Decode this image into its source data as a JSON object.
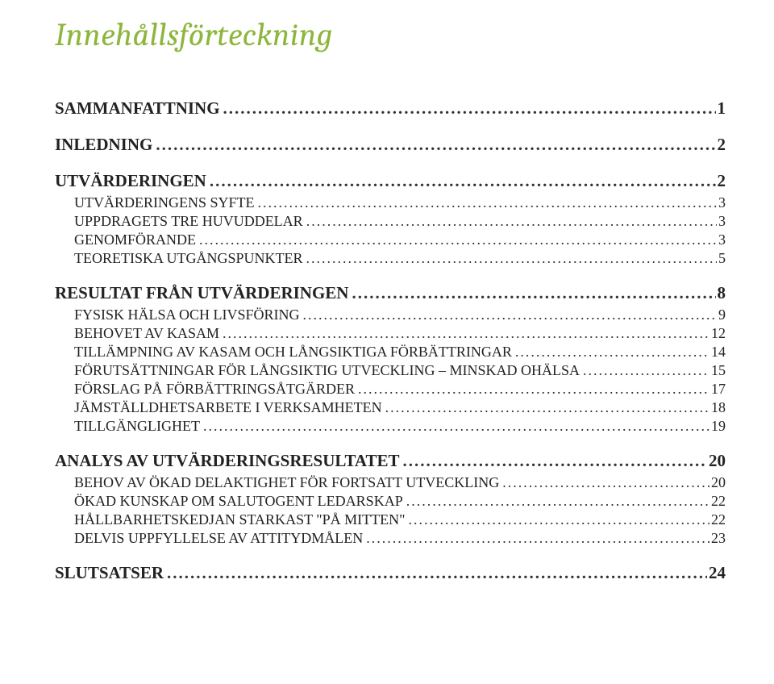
{
  "title": "Innehållsförteckning",
  "colors": {
    "title_color": "#8db63c",
    "text_color": "#222222",
    "background": "#ffffff"
  },
  "typography": {
    "title_font": "Cambria, serif, italic",
    "title_fontsize_pt": 30,
    "body_font": "Times New Roman",
    "lvl1_fontsize_pt": 16,
    "lvl2_fontsize_pt": 13
  },
  "toc": [
    {
      "level": 1,
      "label": "SAMMANFATTNING",
      "page": "1"
    },
    {
      "level": 1,
      "label": "INLEDNING",
      "page": "2"
    },
    {
      "level": 1,
      "label": "UTVÄRDERINGEN",
      "page": "2"
    },
    {
      "level": 2,
      "label": "UTVÄRDERINGENS SYFTE",
      "page": "3"
    },
    {
      "level": 2,
      "label": "UPPDRAGETS TRE HUVUDDELAR",
      "page": "3"
    },
    {
      "level": 2,
      "label": "GENOMFÖRANDE",
      "page": "3"
    },
    {
      "level": 2,
      "label": "TEORETISKA UTGÅNGSPUNKTER",
      "page": "5"
    },
    {
      "level": 1,
      "label": "RESULTAT FRÅN UTVÄRDERINGEN",
      "page": "8"
    },
    {
      "level": 2,
      "label": "FYSISK HÄLSA OCH LIVSFÖRING",
      "page": "9"
    },
    {
      "level": 2,
      "label": "BEHOVET AV KASAM",
      "page": "12"
    },
    {
      "level": 2,
      "label": "TILLÄMPNING AV KASAM OCH LÅNGSIKTIGA FÖRBÄTTRINGAR",
      "page": "14"
    },
    {
      "level": 2,
      "label": "FÖRUTSÄTTNINGAR FÖR LÅNGSIKTIG UTVECKLING – MINSKAD OHÄLSA",
      "page": "15"
    },
    {
      "level": 2,
      "label": "FÖRSLAG PÅ FÖRBÄTTRINGSÅTGÄRDER",
      "page": "17"
    },
    {
      "level": 2,
      "label": "JÄMSTÄLLDHETSARBETE I VERKSAMHETEN",
      "page": "18"
    },
    {
      "level": 2,
      "label": "TILLGÄNGLIGHET",
      "page": "19"
    },
    {
      "level": 1,
      "label": "ANALYS AV UTVÄRDERINGSRESULTATET",
      "page": "20"
    },
    {
      "level": 2,
      "label": "BEHOV AV ÖKAD DELAKTIGHET FÖR FORTSATT UTVECKLING",
      "page": "20"
    },
    {
      "level": 2,
      "label": "ÖKAD KUNSKAP OM SALUTOGENT LEDARSKAP",
      "page": "22"
    },
    {
      "level": 2,
      "label": "HÅLLBARHETSKEDJAN STARKAST \"PÅ MITTEN\"",
      "page": "22"
    },
    {
      "level": 2,
      "label": "DELVIS UPPFYLLELSE AV ATTITYDMÅLEN",
      "page": "23"
    },
    {
      "level": 1,
      "label": "SLUTSATSER",
      "page": "24"
    }
  ]
}
